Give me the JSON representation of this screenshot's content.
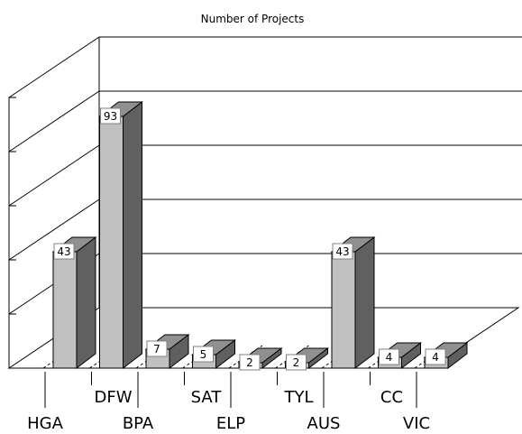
{
  "chart_data": {
    "type": "bar",
    "title": "Number of Projects",
    "categories": [
      "HGA",
      "DFW",
      "BPA",
      "SAT",
      "ELP",
      "TYL",
      "AUS",
      "CC",
      "VIC"
    ],
    "values": [
      43,
      93,
      7,
      5,
      2,
      2,
      43,
      4,
      4
    ],
    "ylim": [
      0,
      100
    ],
    "grid": true,
    "legend": "none",
    "style": "3d-bars",
    "colors": {
      "front": "#c0c0c0",
      "side": "#606060",
      "top": "#909090",
      "floor": "#ffffff",
      "line": "#000000"
    }
  }
}
